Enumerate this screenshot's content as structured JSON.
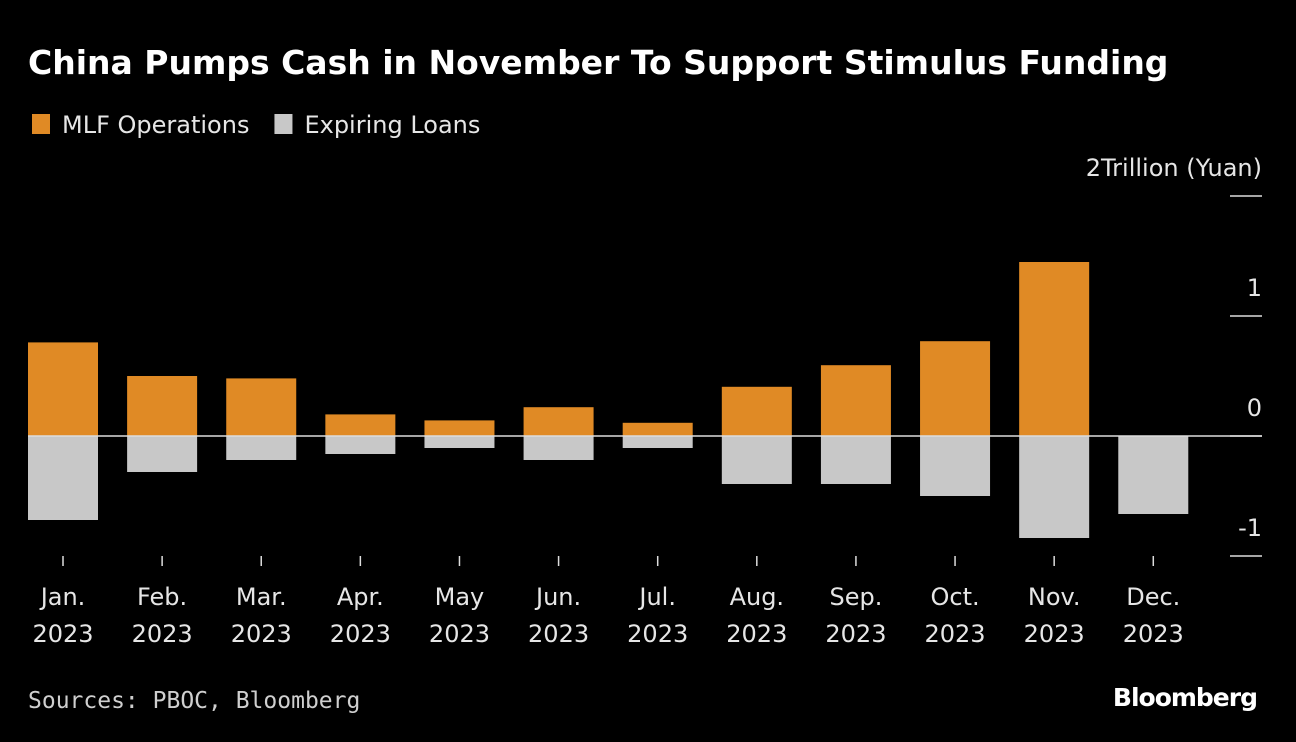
{
  "chart_data": {
    "type": "bar",
    "title": "China Pumps Cash in November To Support Stimulus Funding",
    "y_axis_label": "Trillion (Yuan)",
    "source": "Sources: PBOC, Bloomberg",
    "brand": "Bloomberg",
    "categories": [
      [
        "Jan.",
        "2023"
      ],
      [
        "Feb.",
        "2023"
      ],
      [
        "Mar.",
        "2023"
      ],
      [
        "Apr.",
        "2023"
      ],
      [
        "May",
        "2023"
      ],
      [
        "Jun.",
        "2023"
      ],
      [
        "Jul.",
        "2023"
      ],
      [
        "Aug.",
        "2023"
      ],
      [
        "Sep.",
        "2023"
      ],
      [
        "Oct.",
        "2023"
      ],
      [
        "Nov.",
        "2023"
      ],
      [
        "Dec.",
        "2023"
      ]
    ],
    "series": [
      {
        "name": "MLF Operations",
        "color": "#e08a25",
        "values": [
          0.78,
          0.5,
          0.48,
          0.18,
          0.13,
          0.24,
          0.11,
          0.41,
          0.59,
          0.79,
          1.45,
          null
        ]
      },
      {
        "name": "Expiring Loans",
        "color": "#c8c8c8",
        "values": [
          -0.7,
          -0.3,
          -0.2,
          -0.15,
          -0.1,
          -0.2,
          -0.1,
          -0.4,
          -0.4,
          -0.5,
          -0.85,
          -0.65
        ]
      }
    ],
    "ylim": [
      -1,
      2
    ],
    "yticks": [
      -1,
      0,
      1,
      2
    ],
    "legend": "top-left"
  }
}
